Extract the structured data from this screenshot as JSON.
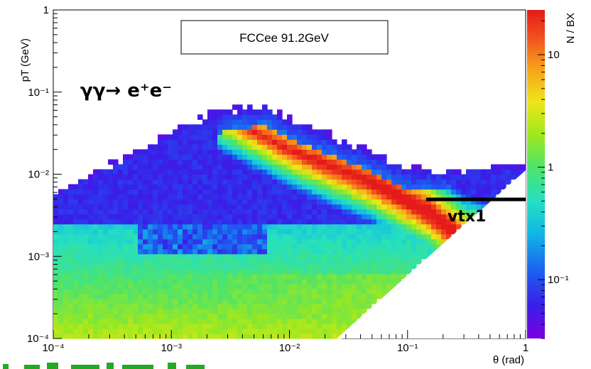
{
  "chart_data": {
    "type": "heatmap",
    "title": "FCCee 91.2GeV",
    "xlabel": "θ (rad)",
    "ylabel": "pT (GeV)",
    "zlabel": "N / BX",
    "x_scale": "log",
    "y_scale": "log",
    "z_scale": "log",
    "xlim": [
      0.0001,
      1
    ],
    "ylim": [
      0.0001,
      1
    ],
    "zlim": [
      0.03,
      25
    ],
    "x_ticks": [
      "10⁻⁴",
      "10⁻³",
      "10⁻²",
      "10⁻¹",
      "1"
    ],
    "y_ticks": [
      "10⁻⁴",
      "10⁻³",
      "10⁻²",
      "10⁻¹",
      "1"
    ],
    "z_ticks": [
      "10⁻¹",
      "1",
      "10"
    ],
    "annotations": [
      {
        "text": "γγ→ e⁺e⁻",
        "theta": 0.00012,
        "pT": 0.1
      },
      {
        "text": "vtx1",
        "theta": 0.18,
        "pT": 0.0021
      }
    ],
    "reference_line": {
      "label": "vtx1",
      "theta_range": [
        0.15,
        1
      ],
      "pT": 0.005
    },
    "ridge": {
      "description": "density ridge along pT proportional to theta",
      "points": [
        [
          0.0022,
          0.06
        ],
        [
          0.01,
          0.02
        ],
        [
          0.05,
          0.008
        ],
        [
          0.15,
          0.0035
        ],
        [
          0.3,
          0.0016
        ]
      ]
    }
  },
  "colors": {
    "palette": [
      "#7a00e0",
      "#3a1ee8",
      "#1d5cf0",
      "#10b8e6",
      "#26e0c0",
      "#4fe36a",
      "#9ee81e",
      "#eee61a",
      "#f8a21a",
      "#f04e1e",
      "#e51a1a"
    ]
  },
  "footer": {
    "partial_text": "..."
  }
}
